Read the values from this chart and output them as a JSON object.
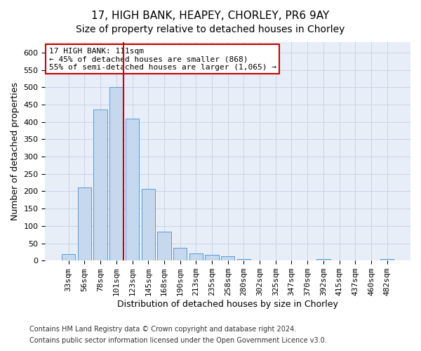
{
  "title": "17, HIGH BANK, HEAPEY, CHORLEY, PR6 9AY",
  "subtitle": "Size of property relative to detached houses in Chorley",
  "xlabel": "Distribution of detached houses by size in Chorley",
  "ylabel": "Number of detached properties",
  "categories": [
    "33sqm",
    "56sqm",
    "78sqm",
    "101sqm",
    "123sqm",
    "145sqm",
    "168sqm",
    "190sqm",
    "213sqm",
    "235sqm",
    "258sqm",
    "280sqm",
    "302sqm",
    "325sqm",
    "347sqm",
    "370sqm",
    "392sqm",
    "415sqm",
    "437sqm",
    "460sqm",
    "482sqm"
  ],
  "values": [
    18,
    210,
    435,
    500,
    410,
    207,
    83,
    37,
    20,
    17,
    13,
    5,
    0,
    0,
    0,
    0,
    5,
    0,
    0,
    0,
    5
  ],
  "bar_color": "#c5d8ed",
  "bar_edge_color": "#5b9bd5",
  "property_line_color": "#cc0000",
  "annotation_line1": "17 HIGH BANK: 111sqm",
  "annotation_line2": "← 45% of detached houses are smaller (868)",
  "annotation_line3": "55% of semi-detached houses are larger (1,065) →",
  "annotation_box_color": "#ffffff",
  "annotation_box_edge": "#cc0000",
  "ylim": [
    0,
    630
  ],
  "yticks": [
    0,
    50,
    100,
    150,
    200,
    250,
    300,
    350,
    400,
    450,
    500,
    550,
    600
  ],
  "grid_color": "#c8d4e8",
  "bg_color": "#e8eef8",
  "footer_line1": "Contains HM Land Registry data © Crown copyright and database right 2024.",
  "footer_line2": "Contains public sector information licensed under the Open Government Licence v3.0.",
  "title_fontsize": 11,
  "subtitle_fontsize": 10,
  "ylabel_fontsize": 9,
  "xlabel_fontsize": 9,
  "tick_fontsize": 8,
  "footer_fontsize": 7
}
